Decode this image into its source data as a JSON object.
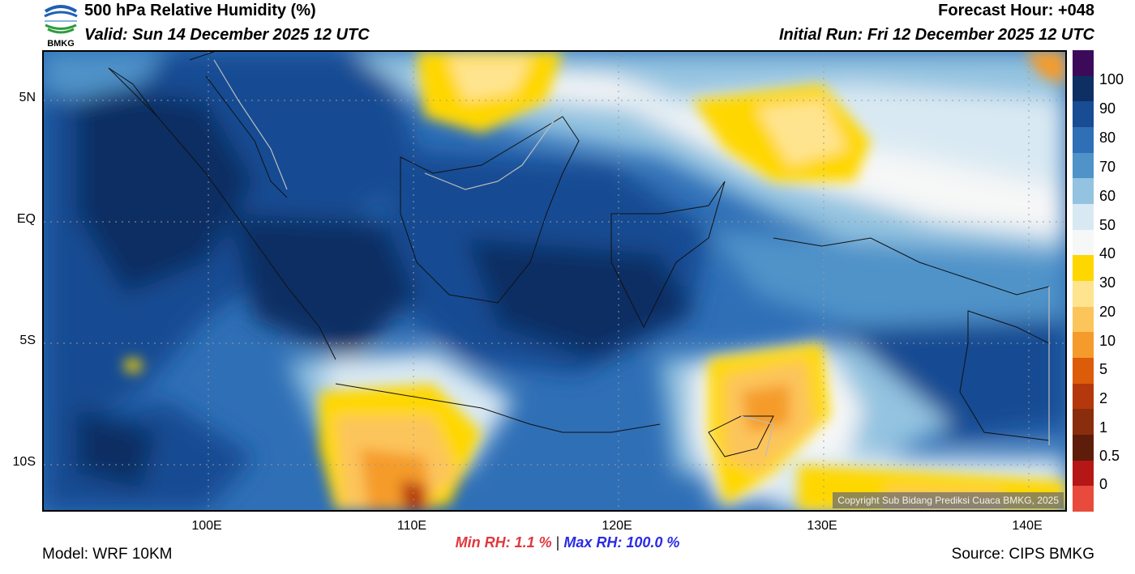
{
  "header": {
    "title": "500 hPa Relative Humidity (%)",
    "valid": "Valid: Sun 14 December 2025 12 UTC",
    "forecast_hour": "Forecast Hour: +048",
    "initial_run": "Initial Run: Fri 12 December 2025 12 UTC",
    "logo_text": "BMKG"
  },
  "map": {
    "lat_labels": [
      "5N",
      "EQ",
      "5S",
      "10S"
    ],
    "lon_labels": [
      "100E",
      "110E",
      "120E",
      "130E",
      "140E"
    ],
    "copyright": "Copyright Sub Bidang Prediksi Cuaca BMKG, 2025"
  },
  "colorbar": {
    "labels": [
      "100",
      "90",
      "80",
      "70",
      "60",
      "50",
      "40",
      "30",
      "20",
      "10",
      "5",
      "2",
      "1",
      "0.5",
      "0"
    ],
    "colors": [
      "#3b0b5a",
      "#0d2f64",
      "#184c93",
      "#2f6fb6",
      "#4f93c9",
      "#93c3e0",
      "#d9e9f3",
      "#f6f7f7",
      "#ffd700",
      "#ffe48f",
      "#fcc55c",
      "#f59b2b",
      "#dc5c0a",
      "#b4380c",
      "#8a2d0c",
      "#5e1c0a",
      "#b51717",
      "#e84b3c"
    ]
  },
  "footer": {
    "model": "Model: WRF 10KM",
    "source": "Source: CIPS BMKG",
    "min_rh": "Min RH:   1.1 %",
    "sep": "|",
    "max_rh": "Max RH: 100.0 %"
  }
}
